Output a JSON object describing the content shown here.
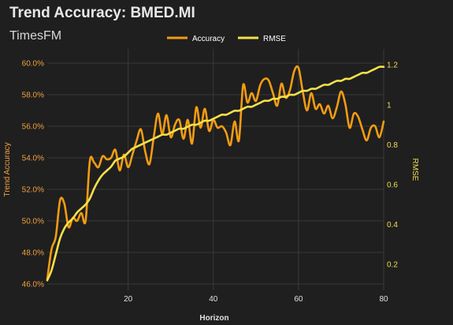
{
  "chart_data": {
    "type": "line",
    "title": "Trend Accuracy: BMED.MI",
    "subtitle": "TimesFM",
    "xlabel": "Horizon",
    "ylabel_left": "Trend Accuracy",
    "ylabel_right": "RMSE",
    "xlim": [
      1,
      80
    ],
    "ylim_left": [
      45.6,
      60.9
    ],
    "ylim_right": [
      0.07,
      1.28
    ],
    "x_ticks": [
      20,
      40,
      60,
      80
    ],
    "y_left_ticks": [
      46.0,
      48.0,
      50.0,
      52.0,
      54.0,
      56.0,
      58.0,
      60.0
    ],
    "y_left_tick_labels": [
      "46.0%",
      "48.0%",
      "50.0%",
      "52.0%",
      "54.0%",
      "56.0%",
      "58.0%",
      "60.0%"
    ],
    "y_right_ticks": [
      0.2,
      0.4,
      0.6,
      0.8,
      1.0,
      1.2
    ],
    "y_right_tick_labels": [
      "0.2",
      "0.4",
      "0.6",
      "0.8",
      "1",
      "1.2"
    ],
    "grid": true,
    "legend_position": "top-center",
    "series": [
      {
        "name": "Accuracy",
        "axis": "left",
        "color": "#f39c12",
        "x": [
          1,
          2,
          3,
          4,
          5,
          6,
          7,
          8,
          9,
          10,
          11,
          12,
          13,
          14,
          15,
          16,
          17,
          18,
          19,
          20,
          21,
          22,
          23,
          24,
          25,
          26,
          27,
          28,
          29,
          30,
          31,
          32,
          33,
          34,
          35,
          36,
          37,
          38,
          39,
          40,
          41,
          42,
          43,
          44,
          45,
          46,
          47,
          48,
          49,
          50,
          51,
          52,
          53,
          54,
          55,
          56,
          57,
          58,
          59,
          60,
          61,
          62,
          63,
          64,
          65,
          66,
          67,
          68,
          69,
          70,
          71,
          72,
          73,
          74,
          75,
          76,
          77,
          78,
          79,
          80
        ],
        "values": [
          46.3,
          48.2,
          49.0,
          51.3,
          51.1,
          49.6,
          50.2,
          50.0,
          50.5,
          50.0,
          53.8,
          53.7,
          53.4,
          54.1,
          53.9,
          54.0,
          54.5,
          53.2,
          54.2,
          53.4,
          54.2,
          55.1,
          55.8,
          54.4,
          53.6,
          55.3,
          56.8,
          55.5,
          56.7,
          55.3,
          56.1,
          56.4,
          55.2,
          56.4,
          54.9,
          57.2,
          55.9,
          57.1,
          55.7,
          56.4,
          55.9,
          56.0,
          55.6,
          54.8,
          56.3,
          55.1,
          58.6,
          57.5,
          58.1,
          57.6,
          58.6,
          59.0,
          58.9,
          58.1,
          57.3,
          58.7,
          57.8,
          58.3,
          59.5,
          59.7,
          58.2,
          57.0,
          58.1,
          57.1,
          57.4,
          56.8,
          57.3,
          56.5,
          57.2,
          58.2,
          57.4,
          55.9,
          56.8,
          56.6,
          55.8,
          55.1,
          55.9,
          56.0,
          55.3,
          56.3
        ]
      },
      {
        "name": "RMSE",
        "axis": "right",
        "color": "#f5e04a",
        "x": [
          1,
          2,
          3,
          4,
          5,
          6,
          7,
          8,
          9,
          10,
          11,
          12,
          13,
          14,
          15,
          16,
          17,
          18,
          19,
          20,
          21,
          22,
          23,
          24,
          25,
          26,
          27,
          28,
          29,
          30,
          31,
          32,
          33,
          34,
          35,
          36,
          37,
          38,
          39,
          40,
          41,
          42,
          43,
          44,
          45,
          46,
          47,
          48,
          49,
          50,
          51,
          52,
          53,
          54,
          55,
          56,
          57,
          58,
          59,
          60,
          61,
          62,
          63,
          64,
          65,
          66,
          67,
          68,
          69,
          70,
          71,
          72,
          73,
          74,
          75,
          76,
          77,
          78,
          79,
          80
        ],
        "values": [
          0.12,
          0.17,
          0.25,
          0.33,
          0.38,
          0.41,
          0.43,
          0.46,
          0.48,
          0.5,
          0.53,
          0.58,
          0.62,
          0.65,
          0.67,
          0.69,
          0.72,
          0.73,
          0.74,
          0.76,
          0.78,
          0.79,
          0.8,
          0.81,
          0.82,
          0.83,
          0.84,
          0.85,
          0.85,
          0.86,
          0.87,
          0.88,
          0.88,
          0.89,
          0.9,
          0.9,
          0.91,
          0.92,
          0.92,
          0.93,
          0.94,
          0.95,
          0.95,
          0.96,
          0.97,
          0.97,
          0.98,
          0.99,
          0.99,
          1.0,
          1.01,
          1.02,
          1.02,
          1.03,
          1.03,
          1.04,
          1.04,
          1.05,
          1.05,
          1.06,
          1.07,
          1.07,
          1.08,
          1.08,
          1.09,
          1.1,
          1.1,
          1.11,
          1.12,
          1.12,
          1.13,
          1.13,
          1.14,
          1.15,
          1.16,
          1.16,
          1.17,
          1.18,
          1.19,
          1.19
        ]
      }
    ]
  }
}
